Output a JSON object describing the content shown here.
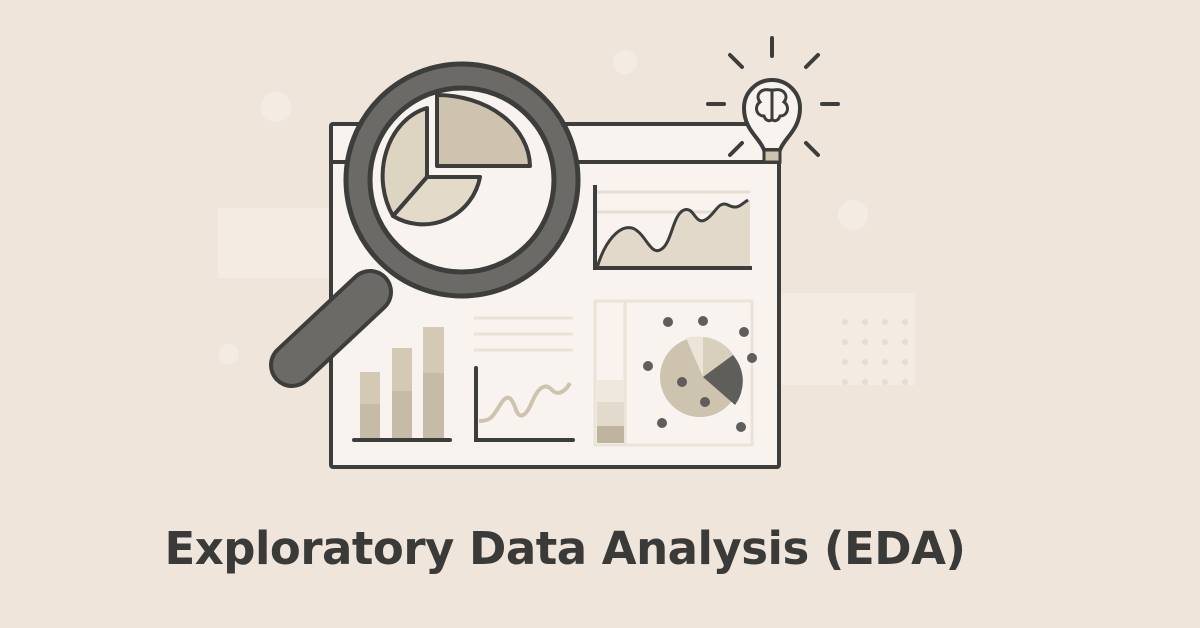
{
  "title": "Exploratory Data Analysis (EDA)",
  "illustration": {
    "elements": [
      "magnifier-icon",
      "pie-chart-icon",
      "lightbulb-brain-icon",
      "area-chart",
      "bar-chart",
      "line-chart",
      "stacked-bar",
      "scatter-pie"
    ]
  },
  "colors": {
    "background": "#efe5da",
    "panel": "#f8f3ee",
    "outline": "#3d3d3b",
    "magnifier": "#6b6a67",
    "accent": "#cdc3ae",
    "accent_dark": "#bcb19b"
  }
}
